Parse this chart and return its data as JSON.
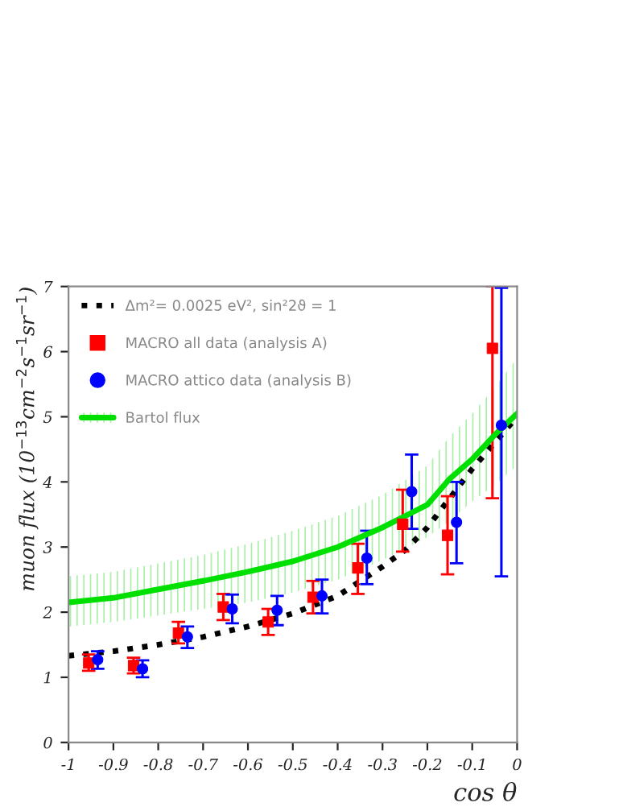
{
  "chart_data": {
    "type": "scatter",
    "xlabel": "cos θ",
    "ylabel": "muon flux (10$^{−13}$cm$^{−2}$s$^{−1}$sr$^{−1}$)",
    "xlim": [
      -1,
      0
    ],
    "xticks": [
      -1,
      -0.9,
      -0.8,
      -0.7,
      -0.6,
      -0.5,
      -0.4,
      -0.3,
      -0.2,
      -0.1,
      0
    ],
    "ylim": [
      0,
      7
    ],
    "yticks": [
      0,
      1,
      2,
      3,
      4,
      5,
      6,
      7
    ],
    "grid": false,
    "legend": "top left",
    "series": [
      {
        "name": "Δm²= 0.0025 eV², sin²2ϑ = 1",
        "type": "line",
        "line_style": "dotted",
        "marker": "none",
        "color": "#000000",
        "x": [
          -1,
          -0.9,
          -0.8,
          -0.7,
          -0.6,
          -0.5,
          -0.4,
          -0.3,
          -0.25,
          -0.2,
          -0.15,
          -0.1,
          -0.05,
          0
        ],
        "values": [
          1.33,
          1.4,
          1.5,
          1.62,
          1.78,
          1.98,
          2.25,
          2.7,
          2.95,
          3.3,
          3.75,
          4.2,
          4.6,
          5.0
        ]
      },
      {
        "name": "MACRO all data (analysis A)",
        "marker": "square",
        "color": "#ff0000",
        "x": [
          -0.955,
          -0.855,
          -0.755,
          -0.655,
          -0.555,
          -0.455,
          -0.355,
          -0.255,
          -0.155,
          -0.055
        ],
        "values": [
          1.22,
          1.18,
          1.68,
          2.08,
          1.85,
          2.23,
          2.68,
          3.35,
          3.18,
          6.05
        ],
        "errors": [
          [
            1.1,
            1.35
          ],
          [
            1.06,
            1.3
          ],
          [
            1.52,
            1.85
          ],
          [
            1.88,
            2.28
          ],
          [
            1.65,
            2.05
          ],
          [
            1.98,
            2.48
          ],
          [
            2.28,
            3.05
          ],
          [
            2.93,
            3.88
          ],
          [
            2.58,
            3.78
          ],
          [
            3.75,
            7.0
          ]
        ]
      },
      {
        "name": "MACRO attico data (analysis B)",
        "marker": "circle",
        "color": "#0000ff",
        "x": [
          -0.935,
          -0.835,
          -0.735,
          -0.635,
          -0.535,
          -0.435,
          -0.335,
          -0.235,
          -0.135,
          -0.035
        ],
        "values": [
          1.27,
          1.13,
          1.62,
          2.05,
          2.03,
          2.25,
          2.83,
          3.85,
          3.38,
          4.87
        ],
        "errors": [
          [
            1.13,
            1.4
          ],
          [
            1.0,
            1.26
          ],
          [
            1.45,
            1.78
          ],
          [
            1.83,
            2.27
          ],
          [
            1.8,
            2.25
          ],
          [
            1.98,
            2.5
          ],
          [
            2.43,
            3.25
          ],
          [
            3.28,
            4.42
          ],
          [
            2.75,
            4.0
          ],
          [
            2.55,
            6.98
          ]
        ]
      },
      {
        "name": "Bartol flux",
        "type": "line",
        "line_style": "solid",
        "marker": "none",
        "color": "#00e000",
        "x": [
          -1,
          -0.9,
          -0.8,
          -0.7,
          -0.6,
          -0.5,
          -0.4,
          -0.3,
          -0.2,
          -0.15,
          -0.1,
          -0.05,
          0
        ],
        "values": [
          2.15,
          2.22,
          2.35,
          2.48,
          2.62,
          2.78,
          3.0,
          3.3,
          3.65,
          4.05,
          4.35,
          4.72,
          5.05
        ],
        "lower": [
          1.78,
          1.85,
          1.95,
          2.05,
          2.15,
          2.3,
          2.5,
          2.8,
          3.15,
          3.4,
          3.7,
          3.95,
          4.25
        ],
        "upper": [
          2.55,
          2.62,
          2.75,
          2.88,
          3.05,
          3.25,
          3.48,
          3.8,
          4.25,
          4.7,
          5.05,
          5.45,
          5.9
        ]
      }
    ]
  }
}
